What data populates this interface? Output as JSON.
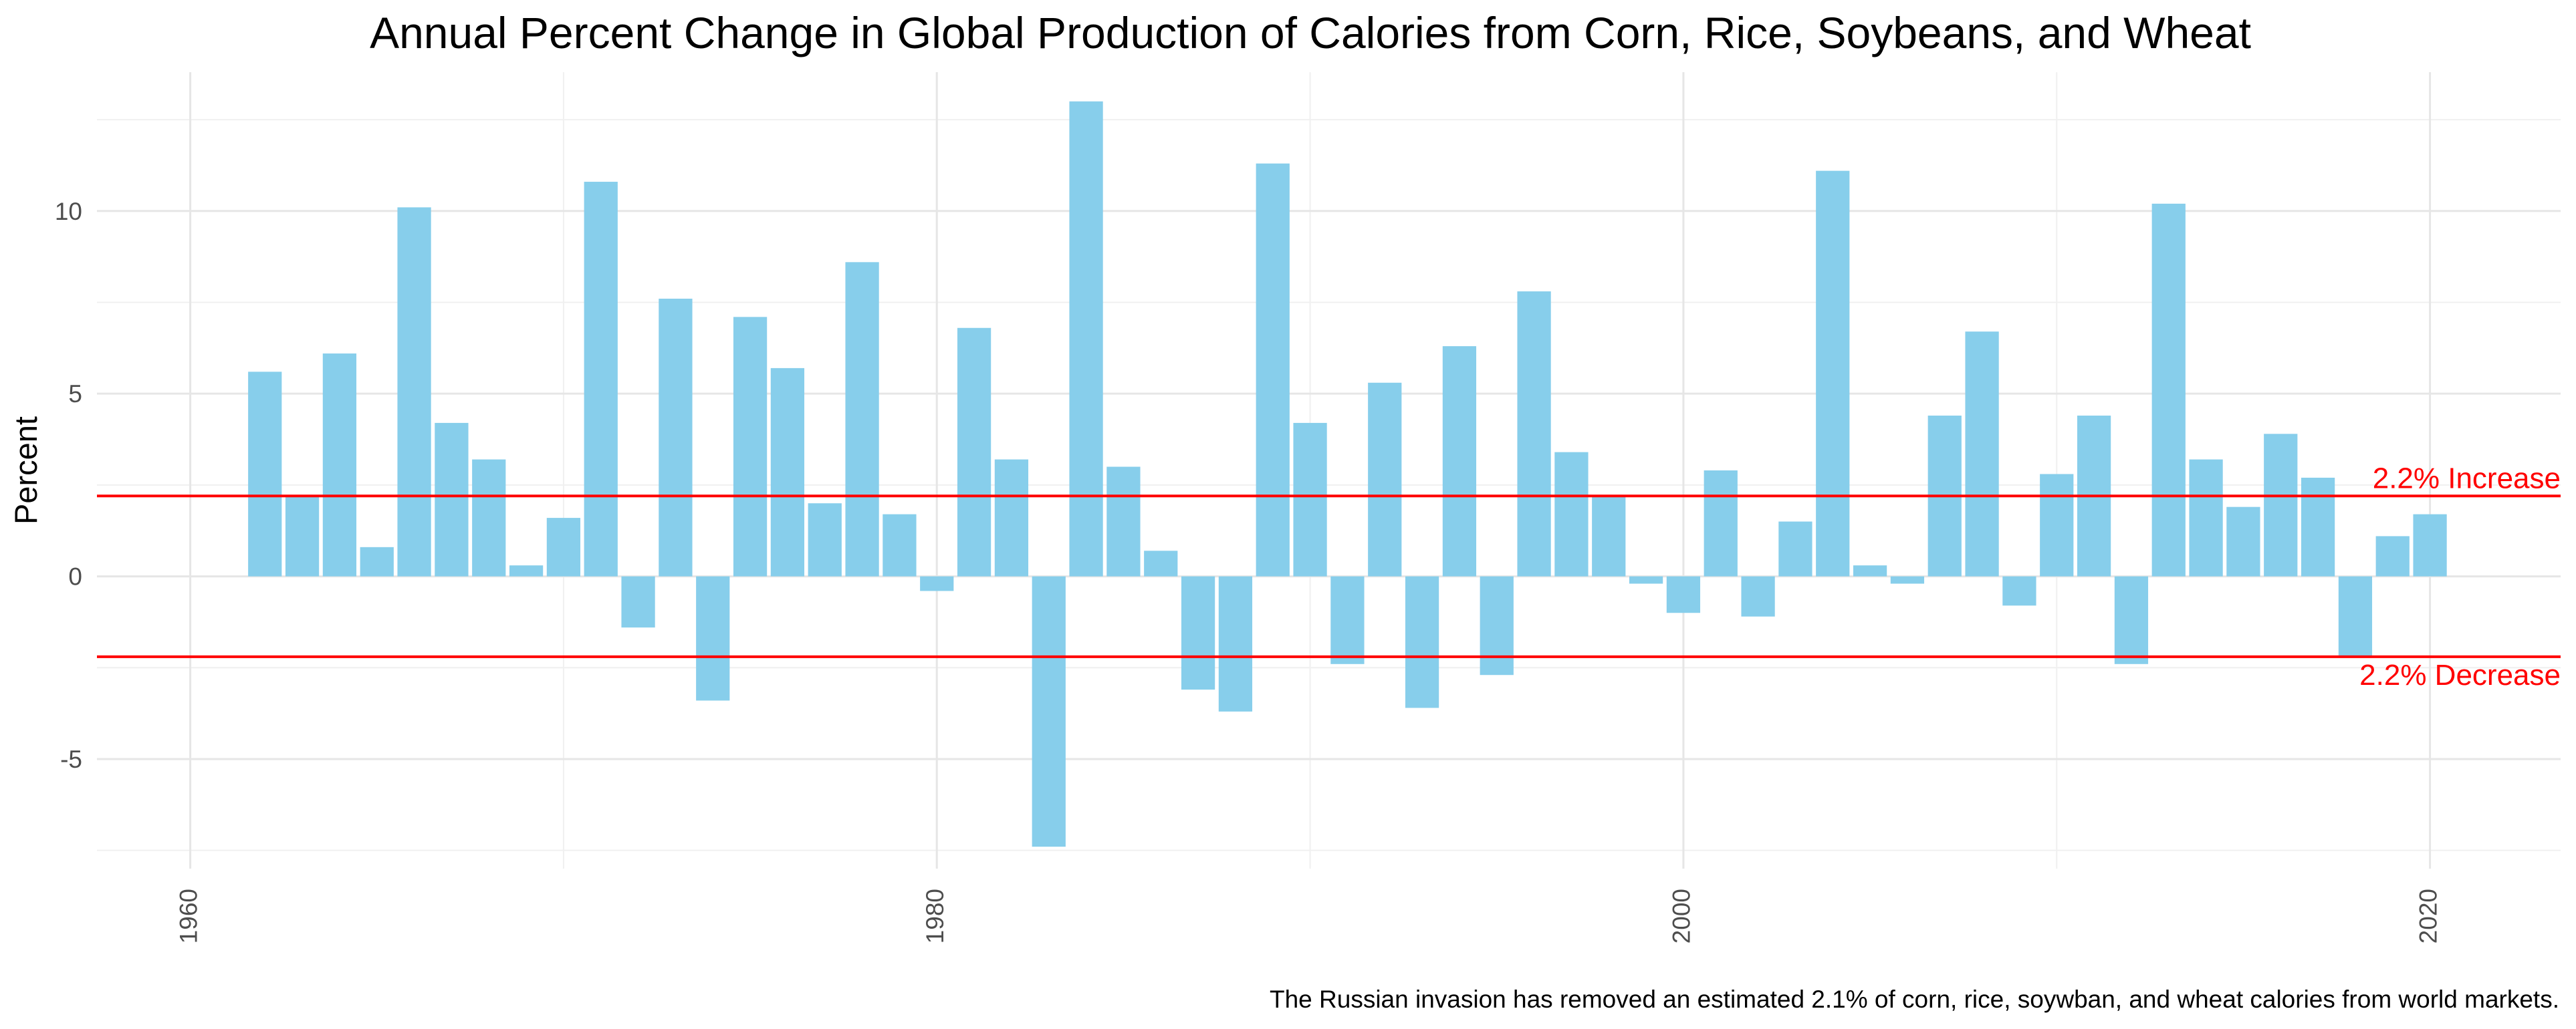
{
  "chart_data": {
    "type": "bar",
    "title": "Annual Percent Change in Global Production of Calories from Corn, Rice, Soybeans, and Wheat",
    "xlabel": "",
    "ylabel": "Percent",
    "caption": "The Russian invasion has removed an estimated 2.1% of corn, rice, soywban, and wheat calories from world markets.",
    "xlim": [
      1957.5,
      2023.5
    ],
    "ylim": [
      -8.0,
      13.8
    ],
    "x_ticks": [
      1960,
      1980,
      2000,
      2020
    ],
    "x_tick_labels": [
      "1960",
      "1980",
      "2000",
      "2020"
    ],
    "y_ticks": [
      -5,
      0,
      5,
      10
    ],
    "y_tick_labels": [
      "-5",
      "0",
      "5",
      "10"
    ],
    "grid": true,
    "x": [
      1962,
      1963,
      1964,
      1965,
      1966,
      1967,
      1968,
      1969,
      1970,
      1971,
      1972,
      1973,
      1974,
      1975,
      1976,
      1977,
      1978,
      1979,
      1980,
      1981,
      1982,
      1983,
      1984,
      1985,
      1986,
      1987,
      1988,
      1989,
      1990,
      1991,
      1992,
      1993,
      1994,
      1995,
      1996,
      1997,
      1998,
      1999,
      2000,
      2001,
      2002,
      2003,
      2004,
      2005,
      2006,
      2007,
      2008,
      2009,
      2010,
      2011,
      2012,
      2013,
      2014,
      2015,
      2016,
      2017,
      2018,
      2019,
      2020
    ],
    "values": [
      5.6,
      2.2,
      6.1,
      0.8,
      10.1,
      4.2,
      3.2,
      0.3,
      1.6,
      10.8,
      -1.4,
      7.6,
      -3.4,
      7.1,
      5.7,
      2.0,
      8.6,
      1.7,
      -0.4,
      6.8,
      3.2,
      -7.4,
      13.0,
      3.0,
      0.7,
      -3.1,
      -3.7,
      11.3,
      4.2,
      -2.4,
      5.3,
      -3.6,
      6.3,
      -2.7,
      7.8,
      3.4,
      2.2,
      -0.2,
      -1.0,
      2.9,
      -1.1,
      1.5,
      11.1,
      0.3,
      -0.2,
      4.4,
      6.7,
      -0.8,
      2.8,
      4.4,
      -2.4,
      10.2,
      3.2,
      1.9,
      3.9,
      2.7,
      -2.2,
      1.1,
      1.7
    ],
    "bar_color": "#87CEEB",
    "reference_lines": [
      {
        "value": 2.2,
        "label": "2.2% Increase",
        "color": "#FF0000"
      },
      {
        "value": -2.2,
        "label": "2.2% Decrease",
        "color": "#FF0000"
      }
    ]
  }
}
